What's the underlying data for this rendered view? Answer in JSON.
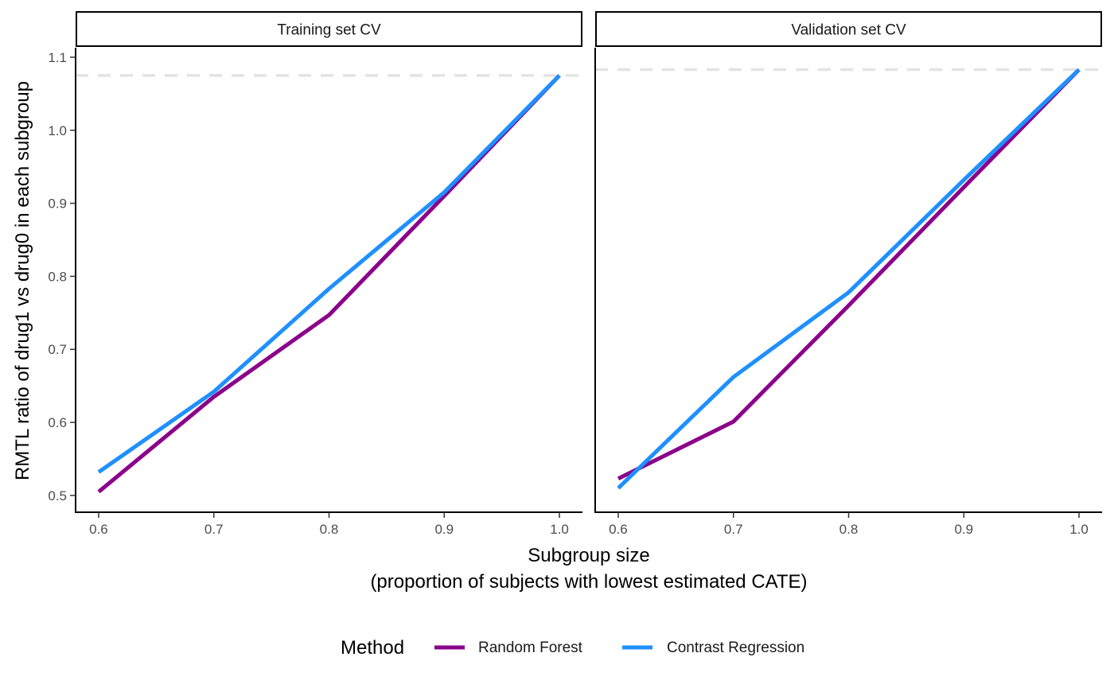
{
  "chart_data": {
    "type": "line",
    "ylabel": "RMTL ratio of drug1 vs drug0 in each subgroup",
    "xlabel_line1": "Subgroup size",
    "xlabel_line2": "(proportion of subjects with lowest estimated CATE)",
    "x_ticks": [
      "0.6",
      "0.7",
      "0.8",
      "0.9",
      "1.0"
    ],
    "y_ticks": [
      "0.5",
      "0.6",
      "0.7",
      "0.8",
      "0.9",
      "1.0",
      "1.1"
    ],
    "xlim": [
      0.58,
      1.02
    ],
    "ylim": [
      0.477,
      1.113
    ],
    "grid": false,
    "legend": {
      "title": "Method",
      "position": "bottom",
      "entries": [
        {
          "name": "Random Forest",
          "color": "#8B008B"
        },
        {
          "name": "Contrast Regression",
          "color": "#1E90FF"
        }
      ]
    },
    "panels": [
      {
        "title": "Training set CV",
        "reference_line": 1.075,
        "x": [
          0.6,
          0.7,
          0.8,
          0.9,
          1.0
        ],
        "series": [
          {
            "name": "Random Forest",
            "color": "#8B008B",
            "values": [
              0.505,
              0.635,
              0.747,
              0.91,
              1.075
            ]
          },
          {
            "name": "Contrast Regression",
            "color": "#1E90FF",
            "values": [
              0.532,
              0.642,
              0.783,
              0.915,
              1.075
            ]
          }
        ]
      },
      {
        "title": "Validation set CV",
        "reference_line": 1.083,
        "x": [
          0.6,
          0.7,
          0.8,
          0.9,
          1.0
        ],
        "series": [
          {
            "name": "Random Forest",
            "color": "#8B008B",
            "values": [
              0.523,
              0.601,
              0.76,
              0.922,
              1.083
            ]
          },
          {
            "name": "Contrast Regression",
            "color": "#1E90FF",
            "values": [
              0.51,
              0.662,
              0.778,
              0.932,
              1.083
            ]
          }
        ]
      }
    ]
  }
}
